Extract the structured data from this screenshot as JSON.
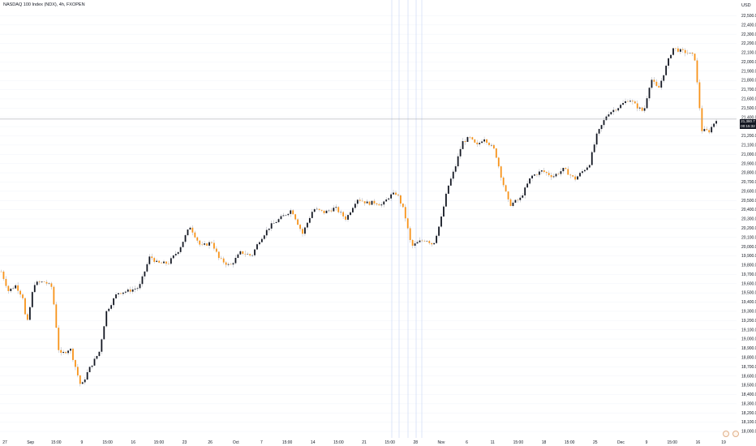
{
  "header": {
    "title": "NASDAQ 100 Index (NDX), 4h, FXOPEN",
    "currency": "USD"
  },
  "last_price": {
    "value": "21,380.7",
    "countdown": "00:15:32"
  },
  "icons": [
    "settings-icon",
    "flag-icon"
  ],
  "colors": {
    "up": "#131722",
    "down": "#f7931a",
    "grid": "#f0f3fa",
    "vline": "#c5d4f5",
    "price_line": "#9598a1"
  },
  "chart_data": {
    "type": "candlestick",
    "title": "NASDAQ 100 Index (NDX), 4h, FXOPEN",
    "ylabel": "USD",
    "ylim": [
      18000,
      22600
    ],
    "y_ticks": [
      "22,500.0",
      "22,400.0",
      "22,300.0",
      "22,200.0",
      "22,100.0",
      "22,000.0",
      "21,900.0",
      "21,800.0",
      "21,700.0",
      "21,600.0",
      "21,500.0",
      "21,400.0",
      "21,300.0",
      "21,200.0",
      "21,100.0",
      "21,000.0",
      "20,900.0",
      "20,800.0",
      "20,700.0",
      "20,600.0",
      "20,500.0",
      "20,400.0",
      "20,300.0",
      "20,200.0",
      "20,100.0",
      "20,000.0",
      "19,900.0",
      "19,800.0",
      "19,700.0",
      "19,600.0",
      "19,500.0",
      "19,400.0",
      "19,300.0",
      "19,200.0",
      "19,100.0",
      "19,000.0",
      "18,900.0",
      "18,800.0",
      "18,700.0",
      "18,600.0",
      "18,500.0",
      "18,400.0",
      "18,300.0",
      "18,200.0",
      "18,100.0",
      "18,000.0"
    ],
    "x_ticks": [
      "27",
      "Sep",
      "15:00",
      "9",
      "15:00",
      "16",
      "15:00",
      "23",
      "26",
      "Oct",
      "7",
      "15:00",
      "14",
      "15:00",
      "21",
      "15:00",
      "28",
      "Nov",
      "6",
      "11",
      "15:00",
      "18",
      "15:00",
      "25",
      "Dec",
      "9",
      "15:00",
      "16",
      "19"
    ],
    "close_path": [
      [
        0,
        19730
      ],
      [
        0.01,
        19520
      ],
      [
        0.02,
        19580
      ],
      [
        0.03,
        19450
      ],
      [
        0.035,
        19130
      ],
      [
        0.045,
        19600
      ],
      [
        0.06,
        19620
      ],
      [
        0.07,
        19560
      ],
      [
        0.08,
        18820
      ],
      [
        0.095,
        18900
      ],
      [
        0.11,
        18480
      ],
      [
        0.12,
        18660
      ],
      [
        0.135,
        18860
      ],
      [
        0.145,
        19300
      ],
      [
        0.16,
        19500
      ],
      [
        0.175,
        19520
      ],
      [
        0.19,
        19560
      ],
      [
        0.205,
        19900
      ],
      [
        0.215,
        19820
      ],
      [
        0.23,
        19820
      ],
      [
        0.245,
        19970
      ],
      [
        0.26,
        20220
      ],
      [
        0.275,
        20000
      ],
      [
        0.29,
        20050
      ],
      [
        0.3,
        19870
      ],
      [
        0.315,
        19790
      ],
      [
        0.33,
        19940
      ],
      [
        0.345,
        19900
      ],
      [
        0.355,
        20060
      ],
      [
        0.37,
        20220
      ],
      [
        0.385,
        20310
      ],
      [
        0.4,
        20400
      ],
      [
        0.415,
        20140
      ],
      [
        0.43,
        20410
      ],
      [
        0.445,
        20370
      ],
      [
        0.46,
        20420
      ],
      [
        0.475,
        20300
      ],
      [
        0.49,
        20520
      ],
      [
        0.505,
        20470
      ],
      [
        0.515,
        20480
      ],
      [
        0.525,
        20450
      ],
      [
        0.535,
        20550
      ],
      [
        0.545,
        20580
      ],
      [
        0.555,
        20380
      ],
      [
        0.565,
        20000
      ],
      [
        0.575,
        20050
      ],
      [
        0.585,
        20080
      ],
      [
        0.595,
        20020
      ],
      [
        0.605,
        20270
      ],
      [
        0.615,
        20640
      ],
      [
        0.625,
        20850
      ],
      [
        0.635,
        21130
      ],
      [
        0.645,
        21180
      ],
      [
        0.655,
        21090
      ],
      [
        0.665,
        21180
      ],
      [
        0.68,
        21040
      ],
      [
        0.69,
        20720
      ],
      [
        0.7,
        20450
      ],
      [
        0.715,
        20520
      ],
      [
        0.73,
        20760
      ],
      [
        0.745,
        20820
      ],
      [
        0.76,
        20760
      ],
      [
        0.775,
        20840
      ],
      [
        0.79,
        20730
      ],
      [
        0.8,
        20810
      ],
      [
        0.81,
        20890
      ],
      [
        0.82,
        21200
      ],
      [
        0.835,
        21440
      ],
      [
        0.85,
        21510
      ],
      [
        0.865,
        21600
      ],
      [
        0.875,
        21520
      ],
      [
        0.885,
        21460
      ],
      [
        0.895,
        21820
      ],
      [
        0.905,
        21700
      ],
      [
        0.915,
        21930
      ],
      [
        0.925,
        22150
      ],
      [
        0.935,
        22120
      ],
      [
        0.945,
        22100
      ],
      [
        0.955,
        22060
      ],
      [
        0.965,
        21260
      ],
      [
        0.975,
        21250
      ],
      [
        0.985,
        21380
      ]
    ],
    "last_value": 21380.7
  }
}
